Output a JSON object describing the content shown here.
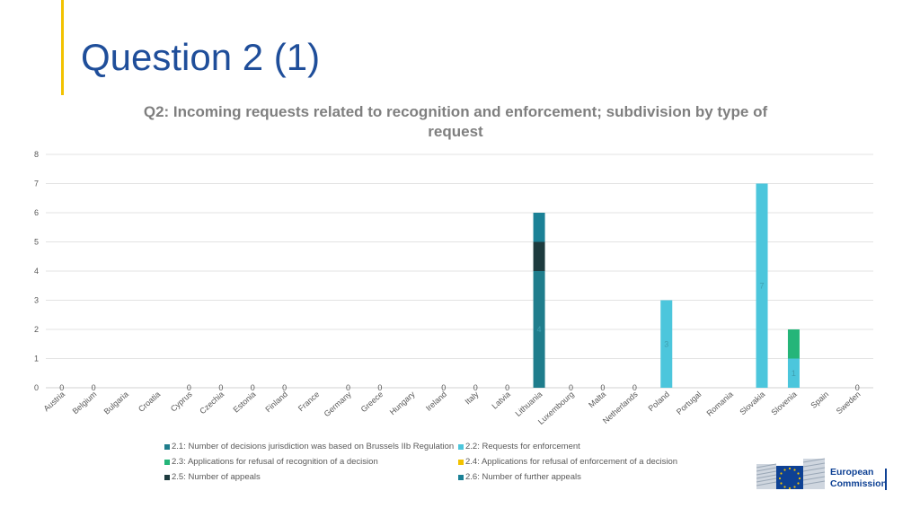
{
  "page": {
    "title": "Question 2 (1)",
    "accent_color": "#f2c200",
    "title_color": "#1f4e9a"
  },
  "chart_data": {
    "type": "bar",
    "stacked": true,
    "title": "Q2: Incoming requests related to recognition and enforcement; subdivision by type of request",
    "xlabel": "",
    "ylabel": "",
    "ylim": [
      0,
      8
    ],
    "yticks": [
      0,
      1,
      2,
      3,
      4,
      5,
      6,
      7,
      8
    ],
    "grid": true,
    "legend_position": "bottom",
    "categories": [
      "Austria",
      "Belgium",
      "Bulgaria",
      "Croatia",
      "Cyprus",
      "Czechia",
      "Estonia",
      "Finland",
      "France",
      "Germany",
      "Greece",
      "Hungary",
      "Ireland",
      "Italy",
      "Latvia",
      "Lithuania",
      "Luxembourg",
      "Malta",
      "Netherlands",
      "Poland",
      "Portugal",
      "Romania",
      "Slovakia",
      "Slovenia",
      "Spain",
      "Sweden"
    ],
    "zero_labels": [
      {
        "category": "Austria",
        "text": "0"
      },
      {
        "category": "Belgium",
        "text": "0"
      },
      {
        "category": "Cyprus",
        "text": "0"
      },
      {
        "category": "Czechia",
        "text": "0"
      },
      {
        "category": "Estonia",
        "text": "0"
      },
      {
        "category": "Finland",
        "text": "0"
      },
      {
        "category": "Germany",
        "text": "0"
      },
      {
        "category": "Greece",
        "text": "0"
      },
      {
        "category": "Ireland",
        "text": "0"
      },
      {
        "category": "Italy",
        "text": "0"
      },
      {
        "category": "Latvia",
        "text": "0"
      },
      {
        "category": "Luxembourg",
        "text": "0"
      },
      {
        "category": "Malta",
        "text": "0"
      },
      {
        "category": "Netherlands",
        "text": "0"
      },
      {
        "category": "Sweden",
        "text": "0"
      }
    ],
    "series": [
      {
        "name": "2.1: Number of decisions jurisdiction was based on Brussels IIb Regulation",
        "color": "#1f7d8c",
        "values": [
          0,
          0,
          null,
          null,
          0,
          0,
          0,
          0,
          null,
          0,
          0,
          null,
          0,
          0,
          0,
          4,
          0,
          0,
          0,
          0,
          null,
          null,
          0,
          0,
          null,
          0
        ]
      },
      {
        "name": "2.2: Requests for enforcement",
        "color": "#4cc6dc",
        "values": [
          0,
          0,
          null,
          null,
          0,
          0,
          0,
          0,
          null,
          0,
          0,
          null,
          0,
          0,
          0,
          0,
          0,
          0,
          0,
          3,
          null,
          null,
          7,
          1,
          null,
          0
        ]
      },
      {
        "name": "2.3: Applications for refusal of recognition of a decision",
        "color": "#25b579",
        "values": [
          0,
          0,
          null,
          null,
          0,
          0,
          0,
          0,
          null,
          0,
          0,
          null,
          0,
          0,
          0,
          0,
          0,
          0,
          0,
          0,
          null,
          null,
          0,
          1,
          null,
          0
        ]
      },
      {
        "name": "2.4: Applications for refusal of enforcement of a decision",
        "color": "#f2c200",
        "values": [
          0,
          0,
          null,
          null,
          0,
          0,
          0,
          0,
          null,
          0,
          0,
          null,
          0,
          0,
          0,
          0,
          0,
          0,
          0,
          0,
          null,
          null,
          0,
          0,
          null,
          0
        ]
      },
      {
        "name": "2.5: Number of appeals",
        "color": "#1d3b3e",
        "values": [
          0,
          0,
          null,
          null,
          0,
          0,
          0,
          0,
          null,
          0,
          0,
          null,
          0,
          0,
          0,
          1,
          0,
          0,
          0,
          0,
          null,
          null,
          0,
          0,
          null,
          0
        ]
      },
      {
        "name": "2.6: Number of further appeals",
        "color": "#1b8196",
        "values": [
          0,
          0,
          null,
          null,
          0,
          0,
          0,
          0,
          null,
          0,
          0,
          null,
          0,
          0,
          0,
          1,
          0,
          0,
          0,
          0,
          null,
          null,
          0,
          0,
          null,
          0
        ]
      }
    ],
    "segment_labels": [
      {
        "category": "Lithuania",
        "series": 0,
        "text": "4"
      },
      {
        "category": "Poland",
        "series": 1,
        "text": "3"
      },
      {
        "category": "Slovakia",
        "series": 1,
        "text": "7"
      },
      {
        "category": "Slovenia",
        "series": 1,
        "text": "1"
      }
    ],
    "axis_text_color": "#595959",
    "grid_color": "#e3e3e3"
  },
  "logo": {
    "line1": "European",
    "line2": "Commission",
    "color": "#0e4194"
  }
}
